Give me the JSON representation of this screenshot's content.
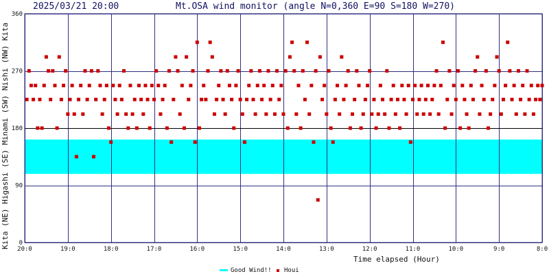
{
  "header": {
    "datetime": "2025/03/21 20:00",
    "title": "Mt.OSA wind monitor (angle N=0,360 E=90 S=180 W=270)"
  },
  "chart_data": {
    "type": "scatter",
    "xlabel": "Time elapsed (Hour)",
    "ylabel_left": "Kita (NE) Higashi (SE) Minami (SW) Nishi (NW) Kita",
    "ylim": [
      0,
      360
    ],
    "y_ticks": [
      0,
      90,
      180,
      270,
      360
    ],
    "xlim_hours": [
      0,
      12
    ],
    "x_ticks": [
      {
        "h": 0,
        "label": "20:0"
      },
      {
        "h": 1,
        "label": "19:0"
      },
      {
        "h": 2,
        "label": "18:0"
      },
      {
        "h": 3,
        "label": "17:0"
      },
      {
        "h": 4,
        "label": "16:0"
      },
      {
        "h": 5,
        "label": "15:0"
      },
      {
        "h": 6,
        "label": "14:0"
      },
      {
        "h": 7,
        "label": "13:0"
      },
      {
        "h": 8,
        "label": "12:0"
      },
      {
        "h": 9,
        "label": "11:0"
      },
      {
        "h": 10,
        "label": "10:0"
      },
      {
        "h": 11,
        "label": "9:0"
      },
      {
        "h": 12,
        "label": "8:0"
      }
    ],
    "grid": true,
    "good_wind_band": {
      "label": "Good Wind!!",
      "from_deg": 108,
      "to_deg": 162,
      "color": "#00ffff"
    },
    "series": [
      {
        "name": "Houi",
        "color": "#cc0000",
        "points": [
          [
            0.05,
            225
          ],
          [
            0.1,
            270
          ],
          [
            0.15,
            247
          ],
          [
            0.2,
            225
          ],
          [
            0.25,
            247
          ],
          [
            0.3,
            180
          ],
          [
            0.35,
            225
          ],
          [
            0.4,
            180
          ],
          [
            0.45,
            247
          ],
          [
            0.5,
            292
          ],
          [
            0.55,
            270
          ],
          [
            0.6,
            225
          ],
          [
            0.65,
            270
          ],
          [
            0.7,
            247
          ],
          [
            0.75,
            180
          ],
          [
            0.8,
            292
          ],
          [
            0.85,
            225
          ],
          [
            0.9,
            247
          ],
          [
            0.95,
            270
          ],
          [
            1.0,
            202
          ],
          [
            1.05,
            225
          ],
          [
            1.1,
            247
          ],
          [
            1.15,
            202
          ],
          [
            1.2,
            135
          ],
          [
            1.25,
            225
          ],
          [
            1.3,
            247
          ],
          [
            1.35,
            202
          ],
          [
            1.4,
            270
          ],
          [
            1.45,
            225
          ],
          [
            1.5,
            247
          ],
          [
            1.55,
            270
          ],
          [
            1.6,
            135
          ],
          [
            1.65,
            225
          ],
          [
            1.7,
            270
          ],
          [
            1.75,
            247
          ],
          [
            1.8,
            202
          ],
          [
            1.85,
            225
          ],
          [
            1.9,
            247
          ],
          [
            1.95,
            180
          ],
          [
            2.0,
            158
          ],
          [
            2.05,
            247
          ],
          [
            2.1,
            225
          ],
          [
            2.15,
            202
          ],
          [
            2.2,
            247
          ],
          [
            2.25,
            225
          ],
          [
            2.3,
            270
          ],
          [
            2.35,
            202
          ],
          [
            2.4,
            180
          ],
          [
            2.45,
            247
          ],
          [
            2.5,
            202
          ],
          [
            2.55,
            225
          ],
          [
            2.6,
            180
          ],
          [
            2.65,
            247
          ],
          [
            2.7,
            225
          ],
          [
            2.75,
            202
          ],
          [
            2.8,
            247
          ],
          [
            2.85,
            225
          ],
          [
            2.9,
            180
          ],
          [
            2.95,
            247
          ],
          [
            3.0,
            225
          ],
          [
            3.05,
            270
          ],
          [
            3.1,
            247
          ],
          [
            3.15,
            202
          ],
          [
            3.2,
            225
          ],
          [
            3.25,
            247
          ],
          [
            3.3,
            180
          ],
          [
            3.35,
            270
          ],
          [
            3.4,
            158
          ],
          [
            3.45,
            225
          ],
          [
            3.5,
            292
          ],
          [
            3.55,
            270
          ],
          [
            3.6,
            202
          ],
          [
            3.65,
            247
          ],
          [
            3.7,
            180
          ],
          [
            3.75,
            292
          ],
          [
            3.8,
            225
          ],
          [
            3.85,
            247
          ],
          [
            3.9,
            270
          ],
          [
            3.95,
            158
          ],
          [
            4.0,
            315
          ],
          [
            4.05,
            180
          ],
          [
            4.1,
            225
          ],
          [
            4.15,
            247
          ],
          [
            4.2,
            225
          ],
          [
            4.25,
            270
          ],
          [
            4.3,
            315
          ],
          [
            4.35,
            292
          ],
          [
            4.4,
            202
          ],
          [
            4.45,
            225
          ],
          [
            4.5,
            247
          ],
          [
            4.55,
            270
          ],
          [
            4.6,
            225
          ],
          [
            4.65,
            202
          ],
          [
            4.7,
            270
          ],
          [
            4.75,
            247
          ],
          [
            4.8,
            225
          ],
          [
            4.85,
            180
          ],
          [
            4.9,
            247
          ],
          [
            4.95,
            270
          ],
          [
            5.0,
            225
          ],
          [
            5.05,
            202
          ],
          [
            5.1,
            158
          ],
          [
            5.15,
            225
          ],
          [
            5.2,
            247
          ],
          [
            5.25,
            270
          ],
          [
            5.3,
            225
          ],
          [
            5.35,
            202
          ],
          [
            5.4,
            247
          ],
          [
            5.45,
            270
          ],
          [
            5.5,
            225
          ],
          [
            5.55,
            247
          ],
          [
            5.6,
            202
          ],
          [
            5.65,
            270
          ],
          [
            5.7,
            225
          ],
          [
            5.75,
            247
          ],
          [
            5.8,
            202
          ],
          [
            5.85,
            270
          ],
          [
            5.9,
            225
          ],
          [
            5.95,
            247
          ],
          [
            6.0,
            202
          ],
          [
            6.05,
            270
          ],
          [
            6.1,
            180
          ],
          [
            6.15,
            292
          ],
          [
            6.2,
            315
          ],
          [
            6.25,
            270
          ],
          [
            6.3,
            202
          ],
          [
            6.35,
            247
          ],
          [
            6.4,
            180
          ],
          [
            6.45,
            270
          ],
          [
            6.5,
            225
          ],
          [
            6.55,
            315
          ],
          [
            6.6,
            202
          ],
          [
            6.65,
            247
          ],
          [
            6.7,
            158
          ],
          [
            6.75,
            270
          ],
          [
            6.8,
            67
          ],
          [
            6.85,
            292
          ],
          [
            6.9,
            225
          ],
          [
            6.95,
            247
          ],
          [
            7.0,
            202
          ],
          [
            7.05,
            270
          ],
          [
            7.1,
            180
          ],
          [
            7.15,
            158
          ],
          [
            7.2,
            225
          ],
          [
            7.25,
            247
          ],
          [
            7.3,
            202
          ],
          [
            7.35,
            292
          ],
          [
            7.4,
            225
          ],
          [
            7.45,
            247
          ],
          [
            7.5,
            270
          ],
          [
            7.55,
            180
          ],
          [
            7.6,
            202
          ],
          [
            7.65,
            225
          ],
          [
            7.7,
            270
          ],
          [
            7.75,
            247
          ],
          [
            7.8,
            180
          ],
          [
            7.85,
            202
          ],
          [
            7.9,
            225
          ],
          [
            7.95,
            247
          ],
          [
            8.0,
            270
          ],
          [
            8.05,
            202
          ],
          [
            8.1,
            225
          ],
          [
            8.15,
            180
          ],
          [
            8.2,
            202
          ],
          [
            8.25,
            247
          ],
          [
            8.3,
            225
          ],
          [
            8.35,
            202
          ],
          [
            8.4,
            270
          ],
          [
            8.45,
            180
          ],
          [
            8.5,
            225
          ],
          [
            8.55,
            247
          ],
          [
            8.6,
            202
          ],
          [
            8.65,
            225
          ],
          [
            8.7,
            180
          ],
          [
            8.75,
            247
          ],
          [
            8.8,
            225
          ],
          [
            8.85,
            202
          ],
          [
            8.9,
            247
          ],
          [
            8.95,
            158
          ],
          [
            9.0,
            225
          ],
          [
            9.05,
            247
          ],
          [
            9.1,
            202
          ],
          [
            9.15,
            225
          ],
          [
            9.2,
            247
          ],
          [
            9.25,
            202
          ],
          [
            9.3,
            225
          ],
          [
            9.35,
            247
          ],
          [
            9.4,
            202
          ],
          [
            9.45,
            225
          ],
          [
            9.5,
            247
          ],
          [
            9.55,
            270
          ],
          [
            9.6,
            202
          ],
          [
            9.65,
            247
          ],
          [
            9.7,
            315
          ],
          [
            9.75,
            180
          ],
          [
            9.8,
            225
          ],
          [
            9.85,
            270
          ],
          [
            9.9,
            202
          ],
          [
            9.95,
            247
          ],
          [
            10.0,
            225
          ],
          [
            10.05,
            270
          ],
          [
            10.1,
            180
          ],
          [
            10.15,
            247
          ],
          [
            10.2,
            225
          ],
          [
            10.25,
            202
          ],
          [
            10.3,
            180
          ],
          [
            10.35,
            247
          ],
          [
            10.4,
            225
          ],
          [
            10.45,
            270
          ],
          [
            10.5,
            292
          ],
          [
            10.55,
            202
          ],
          [
            10.6,
            247
          ],
          [
            10.65,
            225
          ],
          [
            10.7,
            270
          ],
          [
            10.75,
            180
          ],
          [
            10.8,
            202
          ],
          [
            10.85,
            225
          ],
          [
            10.9,
            247
          ],
          [
            10.95,
            292
          ],
          [
            11.0,
            270
          ],
          [
            11.05,
            202
          ],
          [
            11.1,
            225
          ],
          [
            11.15,
            247
          ],
          [
            11.2,
            315
          ],
          [
            11.25,
            270
          ],
          [
            11.3,
            225
          ],
          [
            11.35,
            247
          ],
          [
            11.4,
            202
          ],
          [
            11.45,
            270
          ],
          [
            11.5,
            225
          ],
          [
            11.55,
            247
          ],
          [
            11.6,
            202
          ],
          [
            11.65,
            270
          ],
          [
            11.7,
            225
          ],
          [
            11.75,
            247
          ],
          [
            11.8,
            202
          ],
          [
            11.85,
            225
          ],
          [
            11.9,
            247
          ],
          [
            11.95,
            225
          ],
          [
            12.0,
            247
          ]
        ]
      }
    ]
  },
  "legend": {
    "good_wind": "Good Wind!!",
    "houi": "Houi"
  }
}
